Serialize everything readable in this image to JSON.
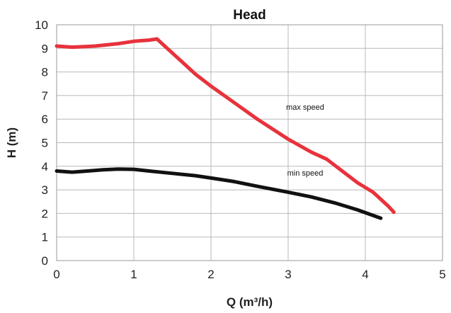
{
  "chart_data": {
    "type": "line",
    "title": "Head",
    "xlabel": "Q (m³/h)",
    "ylabel": "H (m)",
    "xlim": [
      0,
      5
    ],
    "ylim": [
      0,
      10
    ],
    "x_ticks": [
      0,
      1,
      2,
      3,
      4,
      5
    ],
    "y_ticks": [
      0,
      1,
      2,
      3,
      4,
      5,
      6,
      7,
      8,
      9,
      10
    ],
    "grid": true,
    "legend": "none",
    "series": [
      {
        "name": "max speed",
        "color": "#e8323c",
        "x": [
          0,
          0.2,
          0.5,
          0.8,
          1.0,
          1.2,
          1.3,
          1.4,
          1.6,
          1.8,
          2.0,
          2.3,
          2.6,
          3.0,
          3.3,
          3.5,
          3.7,
          3.9,
          4.1,
          4.2,
          4.3,
          4.37
        ],
        "y": [
          9.1,
          9.05,
          9.1,
          9.2,
          9.3,
          9.35,
          9.4,
          9.1,
          8.5,
          7.9,
          7.4,
          6.7,
          6.0,
          5.15,
          4.6,
          4.3,
          3.8,
          3.3,
          2.9,
          2.6,
          2.3,
          2.05
        ]
      },
      {
        "name": "min speed",
        "color": "#111111",
        "x": [
          0,
          0.2,
          0.4,
          0.6,
          0.8,
          1.0,
          1.2,
          1.5,
          1.8,
          2.0,
          2.3,
          2.6,
          3.0,
          3.3,
          3.6,
          3.9,
          4.2
        ],
        "y": [
          3.8,
          3.75,
          3.8,
          3.85,
          3.88,
          3.87,
          3.8,
          3.7,
          3.6,
          3.5,
          3.35,
          3.15,
          2.9,
          2.7,
          2.45,
          2.15,
          1.8
        ]
      }
    ],
    "annotations": [
      {
        "text": "max speed",
        "x": 3.22,
        "y": 6.4
      },
      {
        "text": "min speed",
        "x": 3.22,
        "y": 3.6
      }
    ]
  }
}
